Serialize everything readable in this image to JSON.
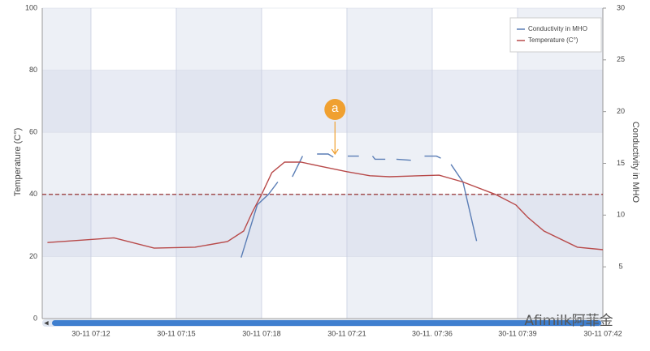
{
  "chart_data": {
    "type": "line",
    "y_label": "Temperature (C°)",
    "y2_label": "Conductivity in MHO",
    "xlim": [
      -0.571,
      6
    ],
    "xticks": [
      {
        "value": 0,
        "label": "30-11 07:12"
      },
      {
        "value": 1,
        "label": "30-11 07:15"
      },
      {
        "value": 2,
        "label": "30-11 07:18"
      },
      {
        "value": 3,
        "label": "30-11 07:21"
      },
      {
        "value": 4,
        "label": "30-11. 07:36"
      },
      {
        "value": 5,
        "label": "30-11 07:39"
      },
      {
        "value": 6,
        "label": "30-11 07:42"
      }
    ],
    "ylim": [
      0,
      100
    ],
    "yticks": [
      0,
      20,
      40,
      60,
      80,
      100
    ],
    "y2lim": [
      0,
      30
    ],
    "y2ticks": [
      5,
      10,
      15,
      20,
      25,
      30
    ],
    "grid": true,
    "legend": "top-right",
    "series": [
      {
        "name": "Conductivity in MHO",
        "color": "#5a7db5",
        "axis": "y2",
        "x": [
          1.76,
          1.95,
          2.08,
          2.19,
          null,
          2.36,
          2.48,
          null,
          2.65,
          2.78,
          2.84,
          null,
          3.01,
          3.14,
          null,
          3.3,
          3.33,
          3.45,
          null,
          3.58,
          3.75,
          null,
          3.91,
          4.05,
          4.1,
          null,
          4.22,
          4.36,
          4.52
        ],
        "values": [
          5.9,
          11,
          12,
          13.2,
          null,
          13.7,
          15.7,
          null,
          15.9,
          15.9,
          15.6,
          null,
          15.7,
          15.7,
          null,
          15.7,
          15.4,
          15.4,
          null,
          15.4,
          15.3,
          null,
          15.7,
          15.7,
          15.5,
          null,
          14.9,
          13.2,
          7.5
        ]
      },
      {
        "name": "Temperature (C°)",
        "color": "#b84a4a",
        "x": [
          -0.51,
          0.27,
          0.74,
          1.22,
          1.6,
          1.79,
          1.89,
          2,
          2.12,
          2.27,
          2.46,
          2.7,
          3,
          3.27,
          3.5,
          4.08,
          4.36,
          4.74,
          4.98,
          5.12,
          5.31,
          5.7,
          6
        ],
        "values": [
          24.5,
          26,
          22.7,
          23,
          24.8,
          28.2,
          34.2,
          40,
          47,
          50.4,
          50.4,
          49,
          47.3,
          46,
          45.7,
          46.2,
          44,
          40,
          36.6,
          32.6,
          28.2,
          23,
          22.2
        ]
      }
    ],
    "hline": {
      "value": 40,
      "color": "#8b1a1a"
    },
    "annotation": {
      "label": "a",
      "x": 2.86,
      "y": 53,
      "color": "#f0a030"
    },
    "watermark": "Afimilk阿菲金"
  }
}
